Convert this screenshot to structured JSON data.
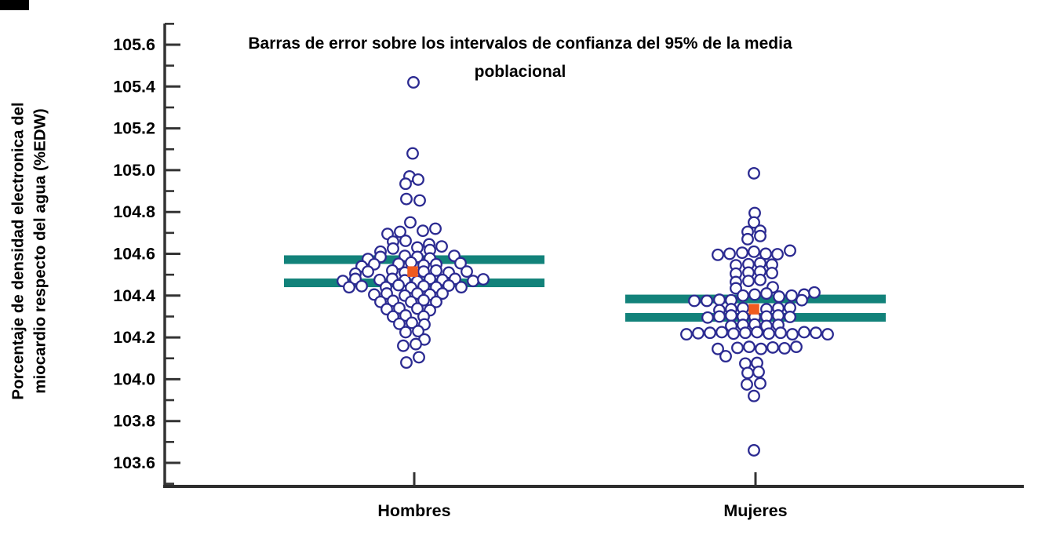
{
  "chart_data": {
    "type": "scatter",
    "variant": "beeswarm-dotplot-with-95ci-error-bars",
    "title": "Barras de error sobre los intervalos de confianza del 95% de la media poblacional",
    "title_lines": [
      "Barras de error sobre los intervalos de confianza del 95% de la media",
      "poblacional"
    ],
    "ylabel": "Porcentaje de densidad electronica del miocardio respecto del agua (%EDW)",
    "ylabel_lines": [
      "Porcentaje de densidad electronica del",
      "miocardio respecto del agua (%EDW)"
    ],
    "xlabel": "",
    "categories": [
      "Hombres",
      "Mujeres"
    ],
    "ylim": [
      103.49,
      105.69
    ],
    "grid": "off",
    "legend": "none",
    "yticks_major": [
      {
        "v": 105.6,
        "label": "105.6"
      },
      {
        "v": 105.4,
        "label": "105.4"
      },
      {
        "v": 105.2,
        "label": "105.2"
      },
      {
        "v": 105.0,
        "label": "105.0"
      },
      {
        "v": 104.8,
        "label": "104.8"
      },
      {
        "v": 104.6,
        "label": "104.6"
      },
      {
        "v": 104.4,
        "label": "104.4"
      },
      {
        "v": 104.2,
        "label": "104.2"
      },
      {
        "v": 104.0,
        "label": "104.0"
      },
      {
        "v": 103.8,
        "label": "103.8"
      },
      {
        "v": 103.6,
        "label": "103.6"
      }
    ],
    "yticks_minor": [
      105.7,
      105.5,
      105.3,
      105.1,
      104.9,
      104.7,
      104.5,
      104.3,
      104.1,
      103.9,
      103.7,
      103.5
    ],
    "colors": {
      "ci_bar": "#12827a",
      "mean_marker": "#ef5b1f",
      "point_stroke": "#2b2a91",
      "point_fill": "#ffffff",
      "axis": "#333333",
      "text": "#000000"
    },
    "series": [
      {
        "name": "Hombres",
        "mean": 104.515,
        "ci95": [
          104.461,
          104.572
        ],
        "points": [
          [
            -1,
            105.42
          ],
          [
            -2,
            105.08
          ],
          [
            -6,
            104.97
          ],
          [
            5,
            104.955
          ],
          [
            -11,
            104.935
          ],
          [
            -10,
            104.862
          ],
          [
            7,
            104.855
          ],
          [
            -5,
            104.75
          ],
          [
            -34,
            104.695
          ],
          [
            -18,
            104.705
          ],
          [
            11,
            104.71
          ],
          [
            27,
            104.72
          ],
          [
            -27,
            104.658
          ],
          [
            -11,
            104.662
          ],
          [
            19,
            104.645
          ],
          [
            -43,
            104.61
          ],
          [
            -27,
            104.625
          ],
          [
            4,
            104.63
          ],
          [
            20,
            104.618
          ],
          [
            35,
            104.635
          ],
          [
            -59,
            104.575
          ],
          [
            -43,
            104.585
          ],
          [
            -12,
            104.59
          ],
          [
            4,
            104.585
          ],
          [
            20,
            104.578
          ],
          [
            51,
            104.59
          ],
          [
            -67,
            104.54
          ],
          [
            -51,
            104.55
          ],
          [
            -20,
            104.552
          ],
          [
            -4,
            104.558
          ],
          [
            12,
            104.545
          ],
          [
            28,
            104.55
          ],
          [
            59,
            104.555
          ],
          [
            -75,
            104.505
          ],
          [
            -59,
            104.515
          ],
          [
            -28,
            104.52
          ],
          [
            -12,
            104.51
          ],
          [
            12,
            104.515
          ],
          [
            28,
            104.52
          ],
          [
            44,
            104.51
          ],
          [
            67,
            104.515
          ],
          [
            -91,
            104.47
          ],
          [
            -75,
            104.48
          ],
          [
            -44,
            104.475
          ],
          [
            -28,
            104.48
          ],
          [
            -12,
            104.473
          ],
          [
            4,
            104.468
          ],
          [
            20,
            104.48
          ],
          [
            36,
            104.475
          ],
          [
            52,
            104.48
          ],
          [
            75,
            104.47
          ],
          [
            88,
            104.478
          ],
          [
            -83,
            104.44
          ],
          [
            -67,
            104.445
          ],
          [
            -36,
            104.44
          ],
          [
            -20,
            104.45
          ],
          [
            -4,
            104.438
          ],
          [
            12,
            104.445
          ],
          [
            28,
            104.44
          ],
          [
            44,
            104.448
          ],
          [
            60,
            104.44
          ],
          [
            -51,
            104.405
          ],
          [
            -35,
            104.41
          ],
          [
            -12,
            104.4
          ],
          [
            4,
            104.41
          ],
          [
            20,
            104.405
          ],
          [
            36,
            104.41
          ],
          [
            -43,
            104.37
          ],
          [
            -27,
            104.375
          ],
          [
            -4,
            104.37
          ],
          [
            12,
            104.378
          ],
          [
            28,
            104.37
          ],
          [
            -35,
            104.335
          ],
          [
            -19,
            104.34
          ],
          [
            4,
            104.338
          ],
          [
            20,
            104.33
          ],
          [
            -27,
            104.3
          ],
          [
            -11,
            104.305
          ],
          [
            12,
            104.3
          ],
          [
            -19,
            104.265
          ],
          [
            -3,
            104.27
          ],
          [
            13,
            104.262
          ],
          [
            -11,
            104.225
          ],
          [
            5,
            104.23
          ],
          [
            13,
            104.19
          ],
          [
            -14,
            104.16
          ],
          [
            2,
            104.168
          ],
          [
            6,
            104.105
          ],
          [
            -10,
            104.08
          ]
        ]
      },
      {
        "name": "Mujeres",
        "mean": 104.335,
        "ci95": [
          104.296,
          104.384
        ],
        "points": [
          [
            -2,
            104.985
          ],
          [
            -1,
            104.795
          ],
          [
            -2,
            104.75
          ],
          [
            -10,
            104.705
          ],
          [
            6,
            104.71
          ],
          [
            -10,
            104.67
          ],
          [
            6,
            104.685
          ],
          [
            -48,
            104.595
          ],
          [
            -33,
            104.6
          ],
          [
            -17,
            104.605
          ],
          [
            -2,
            104.61
          ],
          [
            13,
            104.6
          ],
          [
            28,
            104.598
          ],
          [
            44,
            104.615
          ],
          [
            -25,
            104.545
          ],
          [
            -9,
            104.55
          ],
          [
            6,
            104.555
          ],
          [
            21,
            104.548
          ],
          [
            -25,
            104.505
          ],
          [
            -9,
            104.51
          ],
          [
            6,
            104.515
          ],
          [
            21,
            104.508
          ],
          [
            -25,
            104.465
          ],
          [
            -9,
            104.47
          ],
          [
            6,
            104.475
          ],
          [
            -25,
            104.435
          ],
          [
            22,
            104.44
          ],
          [
            -16,
            104.4
          ],
          [
            -1,
            104.405
          ],
          [
            14,
            104.41
          ],
          [
            30,
            104.395
          ],
          [
            46,
            104.4
          ],
          [
            62,
            104.405
          ],
          [
            75,
            104.415
          ],
          [
            -78,
            104.375
          ],
          [
            -62,
            104.375
          ],
          [
            -46,
            104.38
          ],
          [
            -31,
            104.378
          ],
          [
            59,
            104.378
          ],
          [
            -46,
            104.33
          ],
          [
            -31,
            104.335
          ],
          [
            -16,
            104.34
          ],
          [
            14,
            104.335
          ],
          [
            29,
            104.34
          ],
          [
            44,
            104.342
          ],
          [
            -61,
            104.295
          ],
          [
            -46,
            104.3
          ],
          [
            -31,
            104.305
          ],
          [
            -16,
            104.3
          ],
          [
            -1,
            104.298
          ],
          [
            14,
            104.3
          ],
          [
            29,
            104.305
          ],
          [
            44,
            104.298
          ],
          [
            -31,
            104.255
          ],
          [
            -16,
            104.26
          ],
          [
            -1,
            104.262
          ],
          [
            14,
            104.255
          ],
          [
            29,
            104.26
          ],
          [
            -88,
            104.215
          ],
          [
            -73,
            104.22
          ],
          [
            -58,
            104.222
          ],
          [
            -43,
            104.225
          ],
          [
            -28,
            104.218
          ],
          [
            -13,
            104.222
          ],
          [
            2,
            104.225
          ],
          [
            17,
            104.218
          ],
          [
            32,
            104.222
          ],
          [
            47,
            104.215
          ],
          [
            62,
            104.225
          ],
          [
            77,
            104.222
          ],
          [
            92,
            104.215
          ],
          [
            -48,
            104.145
          ],
          [
            -38,
            104.11
          ],
          [
            -23,
            104.15
          ],
          [
            -8,
            104.155
          ],
          [
            7,
            104.145
          ],
          [
            22,
            104.152
          ],
          [
            37,
            104.148
          ],
          [
            52,
            104.155
          ],
          [
            -13,
            104.075
          ],
          [
            2,
            104.078
          ],
          [
            -10,
            104.03
          ],
          [
            4,
            104.035
          ],
          [
            -11,
            103.975
          ],
          [
            6,
            103.98
          ],
          [
            -2,
            103.92
          ],
          [
            -2,
            103.66
          ]
        ]
      }
    ]
  }
}
